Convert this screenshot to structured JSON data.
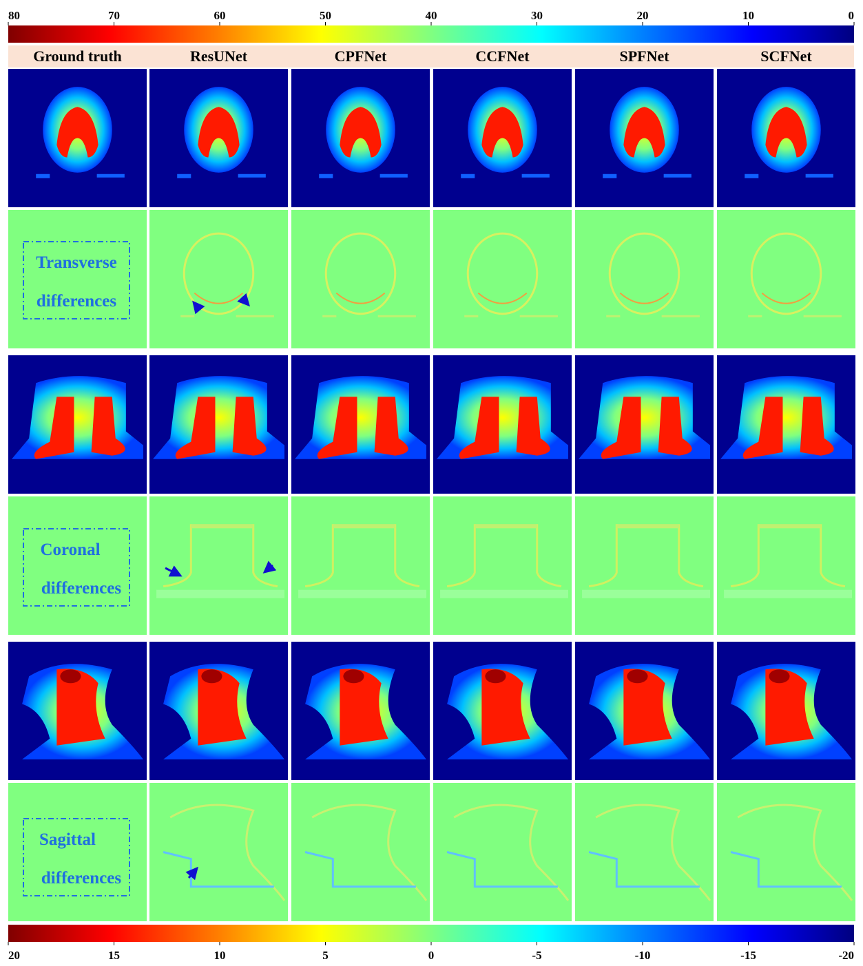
{
  "top_colorbar": {
    "ticks": [
      80,
      70,
      60,
      50,
      40,
      30,
      20,
      10,
      0
    ]
  },
  "columns": [
    "Ground truth",
    "ResUNet",
    "CPFNet",
    "CCFNet",
    "SPFNet",
    "SCFNet"
  ],
  "row_labels": [
    [
      "Transverse",
      "differences"
    ],
    [
      "Coronal",
      "differences"
    ],
    [
      "Sagittal",
      "differences"
    ]
  ],
  "bottom_colorbar": {
    "ticks": [
      20,
      15,
      10,
      5,
      0,
      -5,
      -10,
      -15,
      -20
    ]
  }
}
